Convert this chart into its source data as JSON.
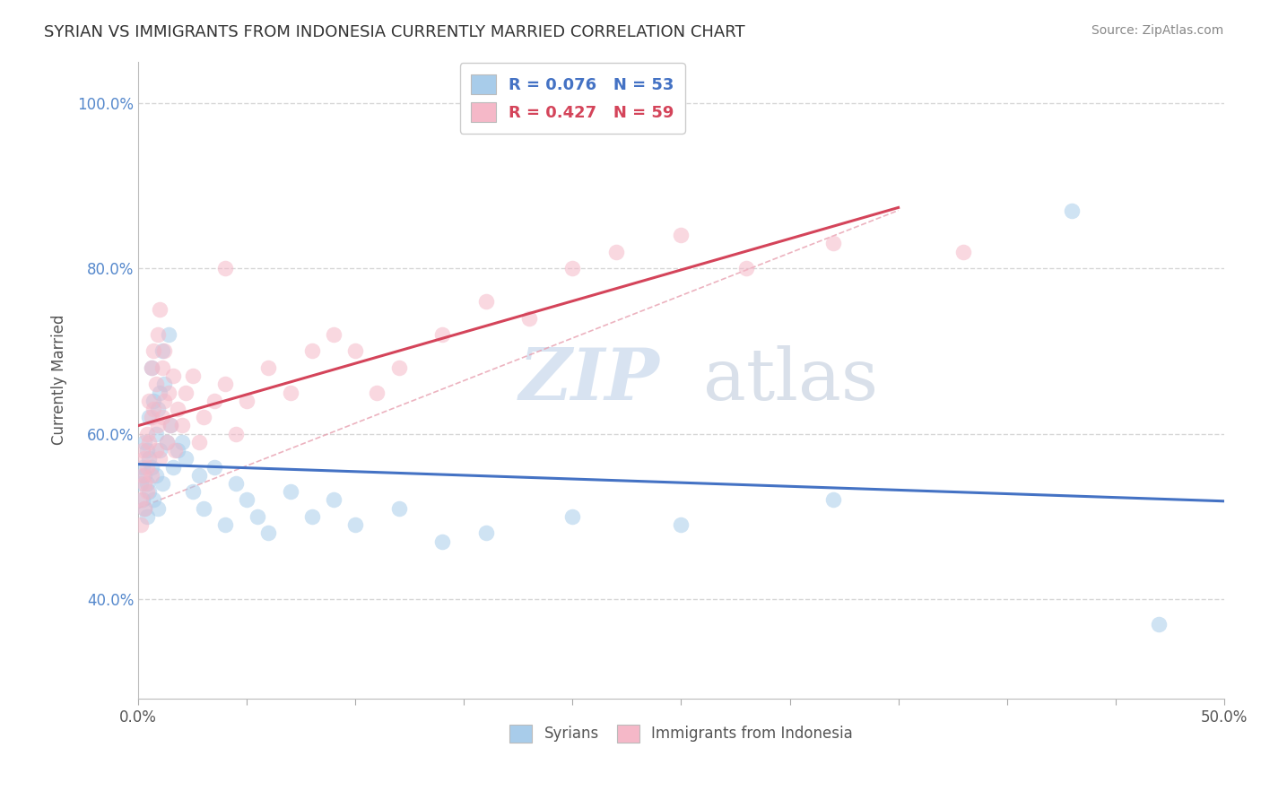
{
  "title": "SYRIAN VS IMMIGRANTS FROM INDONESIA CURRENTLY MARRIED CORRELATION CHART",
  "source_text": "Source: ZipAtlas.com",
  "ylabel": "Currently Married",
  "xlim": [
    0.0,
    0.5
  ],
  "ylim": [
    0.28,
    1.05
  ],
  "legend1_label": "R = 0.076   N = 53",
  "legend2_label": "R = 0.427   N = 59",
  "legend_bottom_label1": "Syrians",
  "legend_bottom_label2": "Immigrants from Indonesia",
  "blue_color": "#A8CCEA",
  "pink_color": "#F5B8C8",
  "blue_line_color": "#4472C4",
  "pink_line_color": "#D4445A",
  "watermark_zip": "ZIP",
  "watermark_atlas": "atlas",
  "title_fontsize": 13,
  "blue_x": [
    0.001,
    0.002,
    0.002,
    0.003,
    0.003,
    0.003,
    0.004,
    0.004,
    0.004,
    0.005,
    0.005,
    0.005,
    0.006,
    0.006,
    0.007,
    0.007,
    0.008,
    0.008,
    0.009,
    0.009,
    0.01,
    0.01,
    0.011,
    0.011,
    0.012,
    0.013,
    0.014,
    0.015,
    0.016,
    0.018,
    0.02,
    0.022,
    0.025,
    0.028,
    0.03,
    0.035,
    0.04,
    0.045,
    0.05,
    0.055,
    0.06,
    0.07,
    0.08,
    0.09,
    0.1,
    0.12,
    0.14,
    0.16,
    0.2,
    0.25,
    0.32,
    0.43,
    0.47
  ],
  "blue_y": [
    0.54,
    0.56,
    0.52,
    0.59,
    0.55,
    0.51,
    0.58,
    0.54,
    0.5,
    0.62,
    0.57,
    0.53,
    0.68,
    0.56,
    0.64,
    0.52,
    0.6,
    0.55,
    0.63,
    0.51,
    0.65,
    0.58,
    0.7,
    0.54,
    0.66,
    0.59,
    0.72,
    0.61,
    0.56,
    0.58,
    0.59,
    0.57,
    0.53,
    0.55,
    0.51,
    0.56,
    0.49,
    0.54,
    0.52,
    0.5,
    0.48,
    0.53,
    0.5,
    0.52,
    0.49,
    0.51,
    0.47,
    0.48,
    0.5,
    0.49,
    0.52,
    0.87,
    0.37
  ],
  "pink_x": [
    0.001,
    0.001,
    0.002,
    0.002,
    0.003,
    0.003,
    0.003,
    0.004,
    0.004,
    0.004,
    0.005,
    0.005,
    0.006,
    0.006,
    0.006,
    0.007,
    0.007,
    0.008,
    0.008,
    0.009,
    0.009,
    0.01,
    0.01,
    0.011,
    0.011,
    0.012,
    0.012,
    0.013,
    0.014,
    0.015,
    0.016,
    0.017,
    0.018,
    0.02,
    0.022,
    0.025,
    0.028,
    0.03,
    0.035,
    0.04,
    0.045,
    0.05,
    0.06,
    0.07,
    0.08,
    0.09,
    0.1,
    0.11,
    0.12,
    0.14,
    0.16,
    0.18,
    0.2,
    0.22,
    0.25,
    0.28,
    0.32,
    0.38,
    0.04
  ],
  "pink_y": [
    0.49,
    0.52,
    0.55,
    0.58,
    0.51,
    0.57,
    0.54,
    0.6,
    0.56,
    0.53,
    0.64,
    0.59,
    0.68,
    0.62,
    0.55,
    0.7,
    0.63,
    0.66,
    0.58,
    0.72,
    0.61,
    0.75,
    0.57,
    0.68,
    0.62,
    0.7,
    0.64,
    0.59,
    0.65,
    0.61,
    0.67,
    0.58,
    0.63,
    0.61,
    0.65,
    0.67,
    0.59,
    0.62,
    0.64,
    0.66,
    0.6,
    0.64,
    0.68,
    0.65,
    0.7,
    0.72,
    0.7,
    0.65,
    0.68,
    0.72,
    0.76,
    0.74,
    0.8,
    0.82,
    0.84,
    0.8,
    0.83,
    0.82,
    0.8
  ]
}
